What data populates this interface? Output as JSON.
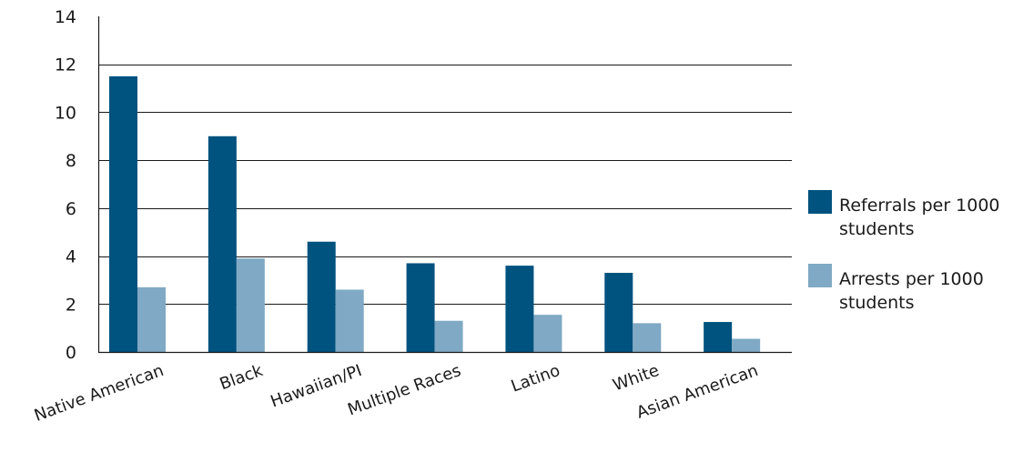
{
  "chart_data": {
    "type": "bar",
    "title": "",
    "xlabel": "",
    "ylabel": "",
    "ylim": [
      0,
      14
    ],
    "y_ticks": [
      "0",
      "2",
      "4",
      "6",
      "8",
      "10",
      "12",
      "14"
    ],
    "grid": true,
    "legend_position": "right",
    "categories": [
      "Native American",
      "Black",
      "Hawaiian/PI",
      "Multiple Races",
      "Latino",
      "White",
      "Asian American"
    ],
    "series": [
      {
        "name": "Referrals per 1000 students",
        "name_lines": [
          "Referrals per 1000",
          "students"
        ],
        "color": "#00527f",
        "values": [
          11.5,
          9.0,
          4.6,
          3.7,
          3.6,
          3.3,
          1.25
        ]
      },
      {
        "name": "Arrests per 1000 students",
        "name_lines": [
          "Arrests per 1000",
          "students"
        ],
        "color": "#7fa9c4",
        "values": [
          2.7,
          3.9,
          2.6,
          1.3,
          1.55,
          1.2,
          0.55
        ]
      }
    ]
  }
}
